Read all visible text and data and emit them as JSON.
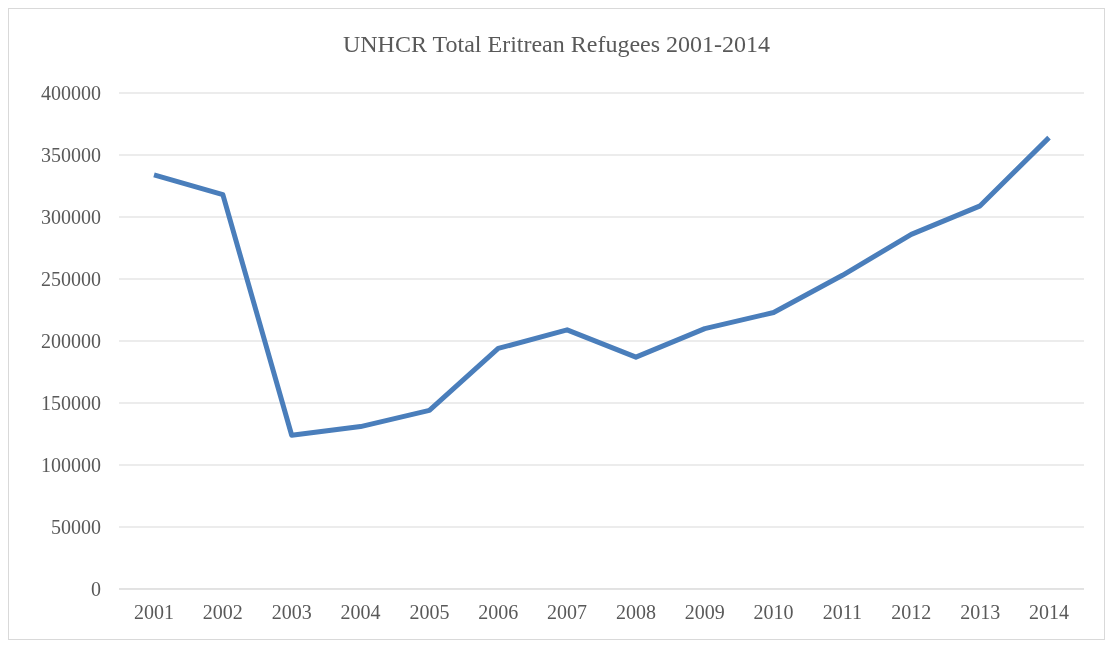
{
  "chart_data": {
    "type": "line",
    "title": "UNHCR Total Eritrean Refugees 2001-2014",
    "categories": [
      "2001",
      "2002",
      "2003",
      "2004",
      "2005",
      "2006",
      "2007",
      "2008",
      "2009",
      "2010",
      "2011",
      "2012",
      "2013",
      "2014"
    ],
    "series": [
      {
        "color": "#4a7ebb",
        "values": [
          334000,
          318000,
          124000,
          131000,
          144000,
          194000,
          209000,
          187000,
          210000,
          223000,
          253000,
          286000,
          309000,
          364000
        ]
      }
    ],
    "ylim": [
      0,
      400000
    ],
    "yticks": [
      0,
      50000,
      100000,
      150000,
      200000,
      250000,
      300000,
      350000,
      400000
    ],
    "grid": "y",
    "legend": false,
    "marker": "none",
    "line_style": "solid"
  }
}
